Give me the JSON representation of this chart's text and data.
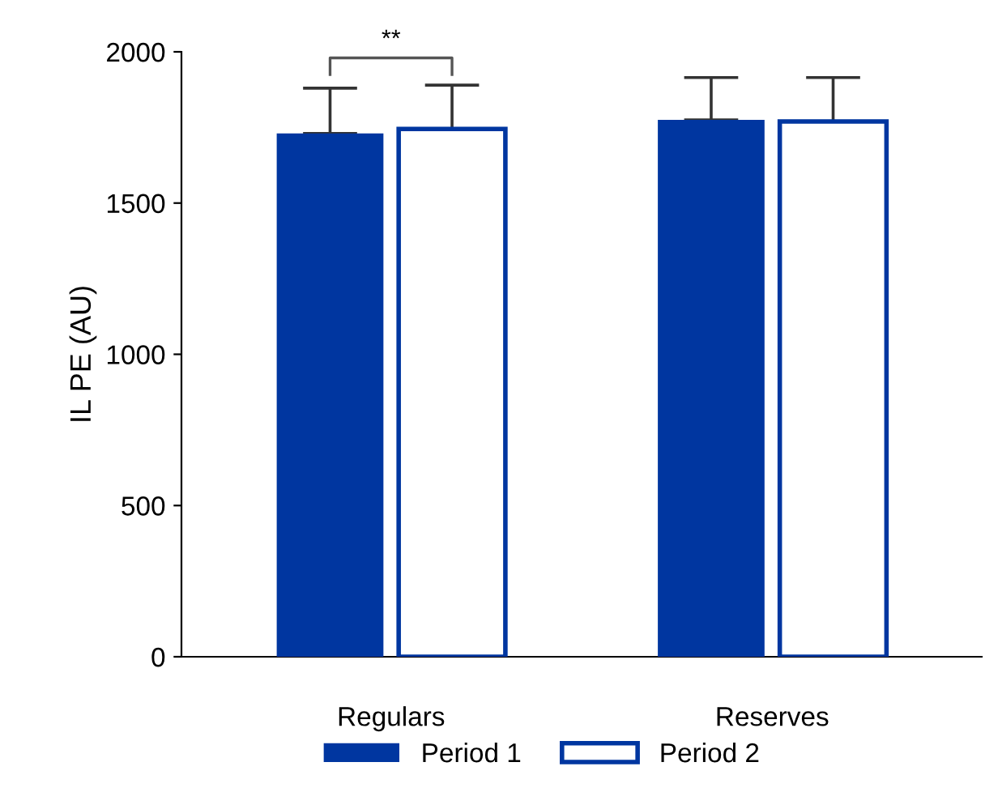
{
  "chart_data": {
    "type": "bar",
    "ylabel": "IL PE (AU)",
    "categories": [
      "Regulars",
      "Reserves"
    ],
    "series": [
      {
        "name": "Period 1",
        "color": "#0036a0",
        "values": [
          1730,
          1775
        ],
        "errors": [
          [
            1730,
            1880
          ],
          [
            1775,
            1915
          ]
        ]
      },
      {
        "name": "Period 2",
        "color": "#0036a0",
        "values": [
          1745,
          1770
        ],
        "errors": [
          [
            1745,
            1890
          ],
          [
            1770,
            1915
          ]
        ]
      }
    ],
    "ylim": [
      0,
      2000
    ],
    "yticks": [
      0,
      500,
      1000,
      1500,
      2000
    ],
    "annotations": [
      "**"
    ],
    "legend": "bottom",
    "grid": false
  }
}
